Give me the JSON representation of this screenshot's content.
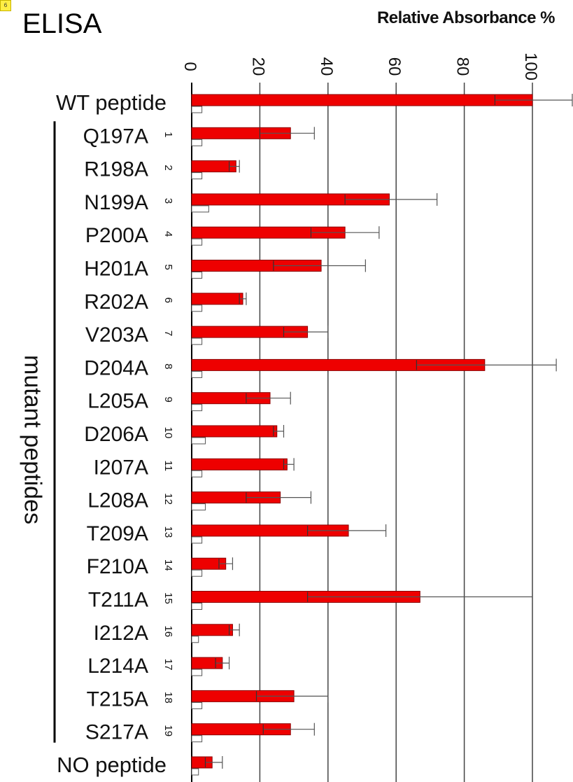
{
  "panel_badge": "6",
  "chart_data": {
    "type": "bar",
    "orientation": "horizontal",
    "title": "ELISA",
    "xlabel": "Relative Absorbance %",
    "xlim": [
      0,
      100
    ],
    "x_ticks": [
      0,
      20,
      40,
      60,
      80,
      100
    ],
    "grid": true,
    "group_label": "mutant peptides",
    "categories": [
      {
        "label": "WT peptide",
        "num": ""
      },
      {
        "label": "Q197A",
        "num": "1"
      },
      {
        "label": "R198A",
        "num": "2"
      },
      {
        "label": "N199A",
        "num": "3"
      },
      {
        "label": "P200A",
        "num": "4"
      },
      {
        "label": "H201A",
        "num": "5"
      },
      {
        "label": "R202A",
        "num": "6"
      },
      {
        "label": "V203A",
        "num": "7"
      },
      {
        "label": "D204A",
        "num": "8"
      },
      {
        "label": "L205A",
        "num": "9"
      },
      {
        "label": "D206A",
        "num": "10"
      },
      {
        "label": "I207A",
        "num": "11"
      },
      {
        "label": "L208A",
        "num": "12"
      },
      {
        "label": "T209A",
        "num": "13"
      },
      {
        "label": "F210A",
        "num": "14"
      },
      {
        "label": "T211A",
        "num": "15"
      },
      {
        "label": "I212A",
        "num": "16"
      },
      {
        "label": "L214A",
        "num": "17"
      },
      {
        "label": "T215A",
        "num": "18"
      },
      {
        "label": "S217A",
        "num": "19"
      },
      {
        "label": "NO peptide",
        "num": ""
      }
    ],
    "series": [
      {
        "color": "#ee0000",
        "values": [
          100,
          29,
          13,
          58,
          45,
          38,
          15,
          34,
          86,
          23,
          25,
          28,
          26,
          46,
          10,
          67,
          12,
          9,
          30,
          29,
          6
        ],
        "error_low": [
          89,
          20,
          11,
          45,
          35,
          24,
          14,
          27,
          66,
          16,
          24,
          27,
          16,
          34,
          8,
          34,
          11,
          7,
          19,
          21,
          4
        ],
        "error_high": [
          112,
          36,
          14,
          72,
          55,
          51,
          16,
          40,
          107,
          29,
          27,
          30,
          35,
          57,
          12,
          100,
          14,
          11,
          40,
          36,
          9
        ]
      },
      {
        "color": "#ffffff",
        "values": [
          3,
          3,
          3,
          5,
          3,
          3,
          3,
          3,
          3,
          3,
          4,
          3,
          4,
          3,
          3,
          3,
          2,
          3,
          3,
          3,
          2
        ]
      }
    ]
  }
}
